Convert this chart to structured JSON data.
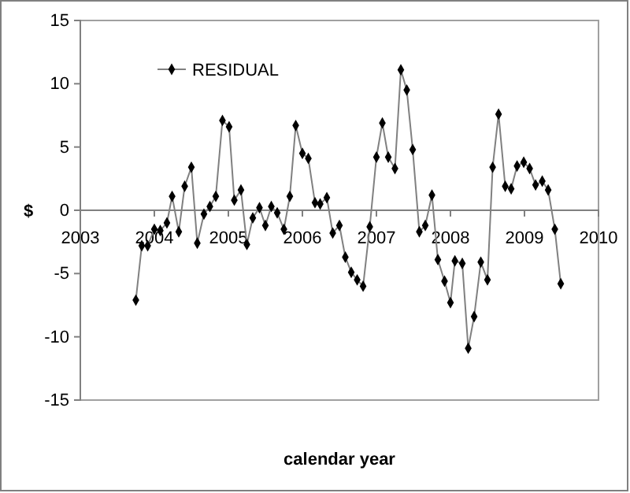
{
  "chart_data": {
    "type": "line",
    "xlabel": "calendar year",
    "ylabel": "$",
    "xlim": [
      2003,
      2010
    ],
    "xticks": [
      2003,
      2004,
      2005,
      2006,
      2007,
      2008,
      2009,
      2010
    ],
    "ylim": [
      -15,
      15
    ],
    "yticks": [
      -15,
      -10,
      -5,
      0,
      5,
      10,
      15
    ],
    "legend": "top left",
    "marker": "diamond",
    "grid": false,
    "x": [
      2003.75,
      2003.83,
      2003.91,
      2004.0,
      2004.08,
      2004.17,
      2004.24,
      2004.33,
      2004.41,
      2004.5,
      2004.58,
      2004.67,
      2004.75,
      2004.83,
      2004.92,
      2005.01,
      2005.08,
      2005.17,
      2005.25,
      2005.33,
      2005.42,
      2005.5,
      2005.58,
      2005.66,
      2005.75,
      2005.83,
      2005.91,
      2006.0,
      2006.08,
      2006.17,
      2006.24,
      2006.33,
      2006.41,
      2006.5,
      2006.58,
      2006.66,
      2006.74,
      2006.82,
      2006.91,
      2007.0,
      2007.08,
      2007.16,
      2007.25,
      2007.33,
      2007.41,
      2007.49,
      2007.58,
      2007.66,
      2007.75,
      2007.83,
      2007.92,
      2008.0,
      2008.06,
      2008.16,
      2008.24,
      2008.32,
      2008.41,
      2008.5,
      2008.57,
      2008.65,
      2008.74,
      2008.82,
      2008.9,
      2008.99,
      2009.07,
      2009.15,
      2009.24,
      2009.32,
      2009.41,
      2009.49
    ],
    "series": [
      {
        "name": "RESIDUAL",
        "color": "#000000",
        "values": [
          -7.1,
          -2.8,
          -2.8,
          -1.5,
          -1.6,
          -1.0,
          1.1,
          -1.7,
          1.9,
          3.4,
          -2.6,
          -0.3,
          0.3,
          1.1,
          7.1,
          6.6,
          0.8,
          1.6,
          -2.7,
          -0.6,
          0.2,
          -1.2,
          0.3,
          -0.2,
          -1.5,
          1.1,
          6.7,
          4.5,
          4.1,
          0.6,
          0.5,
          1.0,
          -1.8,
          -1.2,
          -3.7,
          -4.9,
          -5.5,
          -6.0,
          -1.3,
          4.2,
          6.9,
          4.2,
          3.3,
          11.1,
          9.5,
          4.8,
          -1.7,
          -1.2,
          1.2,
          -3.9,
          -5.6,
          -7.3,
          -4.0,
          -4.2,
          -10.9,
          -8.4,
          -4.1,
          -5.5,
          3.4,
          7.6,
          1.9,
          1.7,
          3.5,
          3.8,
          3.3,
          2.0,
          2.3,
          1.6,
          -1.5,
          -5.8
        ]
      }
    ]
  }
}
